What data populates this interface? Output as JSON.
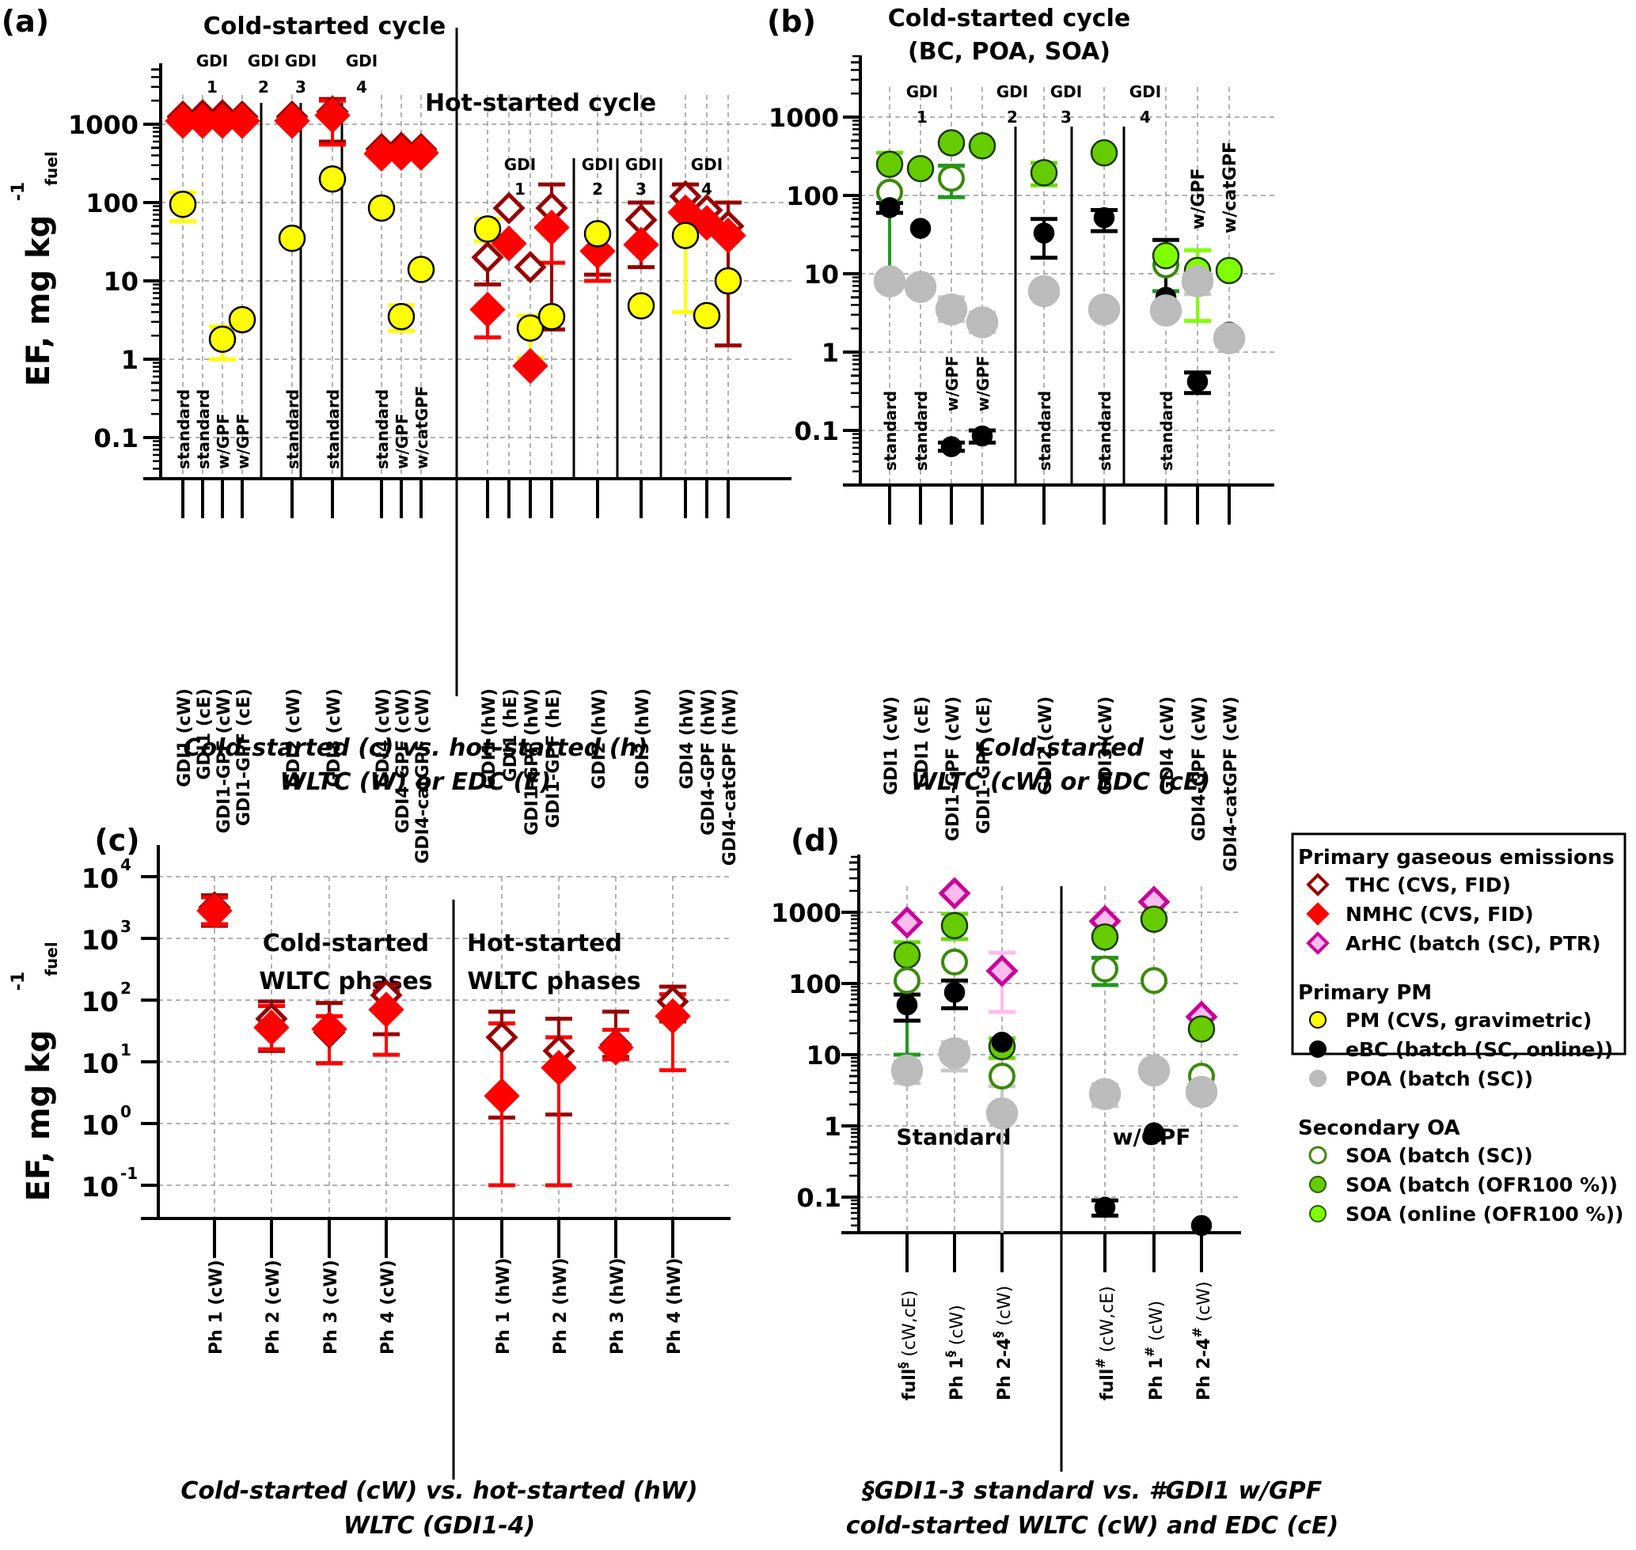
{
  "figure": {
    "panels": [
      "(a)",
      "(b)",
      "(c)",
      "(d)"
    ]
  },
  "chart_data": [
    {
      "panel": "(a)",
      "type": "scatter",
      "yscale": "log",
      "ylabel": "EF, mg kg-1 fuel",
      "ylim": [
        0.03,
        3000
      ],
      "yticks": [
        "1000",
        "100",
        "10",
        "1",
        "0.1"
      ],
      "grid": true,
      "headers": {
        "cold": "Cold-started cycle",
        "hot": "Hot-started cycle"
      },
      "group_labels_cold": [
        {
          "gdi": "GDI",
          "num": "1"
        },
        {
          "gdi": "GDI",
          "num": "2"
        },
        {
          "gdi": "GDI",
          "num": "3"
        },
        {
          "gdi": "GDI",
          "num": "4"
        }
      ],
      "group_labels_hot": [
        {
          "gdi": "GDI",
          "num": "1"
        },
        {
          "gdi": "GDI",
          "num": "2"
        },
        {
          "gdi": "GDI",
          "num": "3"
        },
        {
          "gdi": "GDI",
          "num": "4"
        }
      ],
      "caption": [
        "Cold-started (c) vs. hot-started (h)",
        "WLTC (W) or EDC (E)"
      ],
      "categories": [
        "GDI1 (cW)",
        "GDI1 (cE)",
        "GDI1-GPF (cW)",
        "GDI1-GPF (cE)",
        "GDI2 (cW)",
        "GDI3 (cW)",
        "GDI4 (cW)",
        "GDI4-GPF (cW)",
        "GDI4-catGPF (cW)",
        "GDI1 (hW)",
        "GDI1 (hE)",
        "GDI1-GPF (hW)",
        "GDI1-GPF (hE)",
        "GDI2 (hW)",
        "GDI3 (hW)",
        "GDI4 (hW)",
        "GDI4-GPF (hW)",
        "GDI4-catGPF (hW)"
      ],
      "config_labels": [
        "standard",
        "standard",
        "w/GPF",
        "w/GPF",
        "standard",
        "standard",
        "standard",
        "w/GPF",
        "w/catGPF",
        "",
        "",
        "",
        "",
        "",
        "",
        "",
        "",
        ""
      ],
      "series": [
        {
          "name": "THC (CVS, FID)",
          "marker": "open-diamond",
          "color": "#990000",
          "values": [
            1250,
            1300,
            1300,
            1250,
            1250,
            1450,
            480,
            500,
            480,
            20,
            85,
            15,
            85,
            23,
            60,
            120,
            80,
            50
          ],
          "err": [
            null,
            null,
            null,
            null,
            null,
            [
              600,
              2100
            ],
            null,
            null,
            null,
            [
              9,
              null
            ],
            null,
            null,
            [
              2.4,
              170
            ],
            [
              12,
              null
            ],
            [
              15,
              100
            ],
            [
              null,
              170
            ],
            null,
            [
              1.5,
              100
            ]
          ]
        },
        {
          "name": "NMHC (CVS, FID)",
          "marker": "filled-diamond",
          "color": "#ff0000",
          "values": [
            1100,
            1100,
            1100,
            1100,
            1100,
            1300,
            420,
            430,
            430,
            4.3,
            30,
            0.82,
            48,
            24,
            29,
            75,
            55,
            38
          ],
          "err": [
            null,
            null,
            null,
            null,
            null,
            [
              550,
              2000
            ],
            null,
            null,
            null,
            [
              1.9,
              null
            ],
            null,
            null,
            [
              17,
              null
            ],
            [
              10,
              null
            ],
            [
              null,
              null
            ],
            null,
            null,
            null
          ]
        },
        {
          "name": "PM (CVS, gravimetric)",
          "marker": "filled-circle",
          "color": "#ffff00",
          "values": [
            95,
            null,
            1.8,
            3.2,
            35,
            200,
            85,
            3.5,
            14,
            46,
            null,
            2.5,
            3.5,
            40,
            4.8,
            38,
            3.6,
            10
          ],
          "err": [
            [
              58,
              135
            ],
            null,
            [
              1.0,
              2.6
            ],
            null,
            null,
            null,
            null,
            [
              2.3,
              4.9
            ],
            null,
            [
              32,
              62
            ],
            null,
            [
              1.05,
              3.6
            ],
            null,
            null,
            null,
            [
              4,
              70
            ],
            null,
            null
          ]
        }
      ]
    },
    {
      "panel": "(b)",
      "type": "scatter",
      "yscale": "log",
      "ylim": [
        0.03,
        3000
      ],
      "yticks": [
        "1000",
        "100",
        "10",
        "1",
        "0.1"
      ],
      "grid": true,
      "headers": {
        "title": "Cold-started cycle",
        "subtitle": "(BC, POA, SOA)"
      },
      "group_labels": [
        {
          "gdi": "GDI",
          "num": "1"
        },
        {
          "gdi": "GDI",
          "num": "2"
        },
        {
          "gdi": "GDI",
          "num": "3"
        },
        {
          "gdi": "GDI",
          "num": "4"
        }
      ],
      "caption": [
        "Cold-started",
        "WLTC (cW) or EDC (cE)"
      ],
      "categories": [
        "GDI1 (cW)",
        "GDI1 (cE)",
        "GDI1-GPF (cW)",
        "GDI1-GPF (cE)",
        "GDI2 (cW)",
        "GDI3 (cW)",
        "GDI4 (cW)",
        "GDI4-GPF (cW)",
        "GDI4-catGPF (cW)"
      ],
      "config_labels": [
        "standard",
        "standard",
        "w/GPF",
        "w/GPF",
        "standard",
        "standard",
        "standard",
        "w/GPF",
        "w/catGPF"
      ],
      "series": [
        {
          "name": "SOA (batch (SC))",
          "marker": "open-circle",
          "color": "#3a8a0a",
          "values": [
            110,
            null,
            165,
            null,
            null,
            null,
            13,
            null,
            null
          ],
          "err": [
            [
              10,
              null
            ],
            null,
            [
              95,
              240
            ],
            null,
            null,
            null,
            [
              6,
              null
            ],
            null,
            null
          ]
        },
        {
          "name": "SOA (batch (OFR100 %))",
          "marker": "filled-circle",
          "color": "#66cc00",
          "values": [
            250,
            220,
            470,
            430,
            195,
            350,
            null,
            null,
            null
          ],
          "err": [
            [
              null,
              350
            ],
            null,
            null,
            null,
            [
              135,
              260
            ],
            null,
            null,
            null,
            null
          ]
        },
        {
          "name": "SOA (online (OFR100 %))",
          "marker": "filled-circle",
          "color": "#80ff00",
          "values": [
            null,
            null,
            null,
            null,
            null,
            null,
            17,
            11,
            11
          ],
          "err": [
            null,
            null,
            null,
            null,
            null,
            null,
            null,
            [
              2.5,
              20
            ],
            null
          ]
        },
        {
          "name": "eBC (batch (SC, online))",
          "marker": "filled-circle",
          "color": "#000000",
          "values": [
            70,
            38,
            0.062,
            0.085,
            33,
            52,
            5,
            0.42,
            1.8
          ],
          "err": [
            [
              60,
              80
            ],
            null,
            [
              0.055,
              0.07
            ],
            [
              0.07,
              0.1
            ],
            [
              16,
              50
            ],
            [
              35,
              65
            ],
            [
              null,
              27
            ],
            [
              0.3,
              0.55
            ],
            null
          ]
        },
        {
          "name": "POA (batch (SC))",
          "marker": "filled-circle",
          "color": "#bbbbbb",
          "values": [
            8,
            6.8,
            3.5,
            2.4,
            6,
            3.5,
            3.4,
            8,
            1.5
          ],
          "err": [
            null,
            null,
            [
              2.5,
              5
            ],
            [
              1.8,
              3.2
            ],
            null,
            null,
            null,
            [
              5.5,
              null
            ],
            null
          ]
        }
      ]
    },
    {
      "panel": "(c)",
      "type": "scatter",
      "yscale": "log",
      "ylabel": "EF, mg kg-1 fuel",
      "ylim": [
        0.03,
        10000
      ],
      "yticks": [
        {
          "base": "10",
          "exp": "4"
        },
        {
          "base": "10",
          "exp": "3"
        },
        {
          "base": "10",
          "exp": "2"
        },
        {
          "base": "10",
          "exp": "1"
        },
        {
          "base": "10",
          "exp": "0"
        },
        {
          "base": "10",
          "exp": "-1"
        }
      ],
      "grid": true,
      "annotations": {
        "cold": [
          "Cold-started",
          "WLTC phases"
        ],
        "hot": [
          "Hot-started",
          "WLTC phases"
        ]
      },
      "caption": [
        "Cold-started (cW) vs. hot-started (hW)",
        "WLTC (GDI1-4)"
      ],
      "categories": [
        "Ph 1 (cW)",
        "Ph 2 (cW)",
        "Ph 3 (cW)",
        "Ph 4 (cW)",
        "Ph 1 (hW)",
        "Ph 2 (hW)",
        "Ph 3 (hW)",
        "Ph 4 (hW)"
      ],
      "series": [
        {
          "name": "THC (CVS, FID)",
          "marker": "open-diamond",
          "color": "#990000",
          "values": [
            3200,
            50,
            30,
            120,
            25,
            15,
            19,
            95
          ],
          "err": [
            [
              1600,
              5000
            ],
            [
              15,
              95
            ],
            [
              9.5,
              90
            ],
            [
              28,
              180
            ],
            [
              1.25,
              65
            ],
            [
              1.4,
              50
            ],
            [
              12,
              65
            ],
            [
              45,
              165
            ]
          ]
        },
        {
          "name": "NMHC (CVS, FID)",
          "marker": "filled-diamond",
          "color": "#ff0000",
          "values": [
            2800,
            36,
            34,
            70,
            2.8,
            8,
            17,
            55
          ],
          "err": [
            [
              1700,
              4600
            ],
            [
              16,
              80
            ],
            [
              9.5,
              55
            ],
            [
              13,
              140
            ],
            [
              0.1,
              42
            ],
            [
              0.1,
              25
            ],
            [
              11,
              33
            ],
            [
              7.3,
              125
            ]
          ]
        }
      ]
    },
    {
      "panel": "(d)",
      "type": "scatter",
      "yscale": "log",
      "ylim": [
        0.03,
        3000
      ],
      "yticks": [
        "1000",
        "100",
        "10",
        "1",
        "0.1"
      ],
      "grid": true,
      "annotations": {
        "left": "Standard",
        "right": "w/GPF"
      },
      "caption": [
        "§GDI1-3 standard    vs.    #GDI1 w/GPF",
        "cold-started WLTC (cW) and EDC (cE)"
      ],
      "categories": [
        {
          "main": "full",
          "sup": "§",
          "rest": " (cW,cE)"
        },
        {
          "main": "Ph 1",
          "sup": "§",
          "rest": " (cW)"
        },
        {
          "main": "Ph 2-4",
          "sup": "§",
          "rest": " (cW)"
        },
        {
          "main": "full",
          "sup": "#",
          "rest": " (cW,cE)"
        },
        {
          "main": "Ph 1",
          "sup": "#",
          "rest": " (cW)"
        },
        {
          "main": "Ph 2-4",
          "sup": "#",
          "rest": " (cW)"
        }
      ],
      "series": [
        {
          "name": "ArHC (batch (SC), PTR)",
          "marker": "open-diamond",
          "color": "#cc0099",
          "fill": "#ffbbee",
          "values": [
            720,
            1850,
            150,
            750,
            1400,
            34
          ],
          "err": [
            null,
            null,
            [
              40,
              270
            ],
            null,
            null,
            null
          ]
        },
        {
          "name": "SOA (batch (OFR100 %))",
          "marker": "filled-circle",
          "color": "#66cc00",
          "values": [
            250,
            650,
            13,
            450,
            800,
            23
          ],
          "err": [
            [
              null,
              380
            ],
            [
              420,
              950
            ],
            [
              9,
              17
            ],
            null,
            null,
            null
          ]
        },
        {
          "name": "SOA (batch (SC))",
          "marker": "open-circle",
          "color": "#3a8a0a",
          "values": [
            110,
            200,
            5,
            160,
            110,
            5
          ],
          "err": [
            [
              10,
              null
            ],
            null,
            null,
            [
              95,
              230
            ],
            null,
            null
          ]
        },
        {
          "name": "eBC (batch (SC, online))",
          "marker": "filled-circle",
          "color": "#000000",
          "values": [
            50,
            75,
            15,
            0.072,
            0.8,
            0.04
          ],
          "err": [
            [
              30,
              70
            ],
            [
              45,
              110
            ],
            null,
            [
              0.055,
              0.09
            ],
            null,
            null
          ]
        },
        {
          "name": "POA (batch (SC))",
          "marker": "filled-circle",
          "color": "#bbbbbb",
          "values": [
            6,
            10.5,
            1.5,
            2.8,
            6,
            3
          ],
          "err": [
            [
              4,
              8
            ],
            [
              6,
              15
            ],
            [
              0.03,
              3.6
            ],
            [
              1.9,
              3.8
            ],
            null,
            null
          ]
        }
      ]
    }
  ],
  "legend": {
    "position": "right",
    "groups": [
      {
        "title": "Primary gaseous emissions",
        "items": [
          {
            "label": "THC (CVS, FID)",
            "marker": "open-diamond",
            "stroke": "#990000",
            "fill": "#ffffff"
          },
          {
            "label": "NMHC (CVS, FID)",
            "marker": "filled-diamond",
            "stroke": "#ff0000",
            "fill": "#ff0000"
          },
          {
            "label": "ArHC (batch (SC), PTR)",
            "marker": "open-diamond",
            "stroke": "#cc0099",
            "fill": "#ffbbee"
          }
        ]
      },
      {
        "title": "Primary PM",
        "items": [
          {
            "label": "PM (CVS, gravimetric)",
            "marker": "circle",
            "stroke": "#000000",
            "fill": "#ffff00"
          },
          {
            "label": "eBC (batch (SC, online))",
            "marker": "circle",
            "stroke": "#000000",
            "fill": "#000000"
          },
          {
            "label": "POA (batch (SC))",
            "marker": "circle",
            "stroke": "#bbbbbb",
            "fill": "#bbbbbb"
          }
        ]
      },
      {
        "title": "Secondary OA",
        "items": [
          {
            "label": "SOA (batch (SC))",
            "marker": "circle",
            "stroke": "#3a8a0a",
            "fill": "#ffffff"
          },
          {
            "label": "SOA (batch (OFR100 %))",
            "marker": "circle",
            "stroke": "#2a5a00",
            "fill": "#66cc00"
          },
          {
            "label": "SOA (online (OFR100 %))",
            "marker": "circle",
            "stroke": "#2a5a00",
            "fill": "#80ff00"
          }
        ]
      }
    ]
  }
}
